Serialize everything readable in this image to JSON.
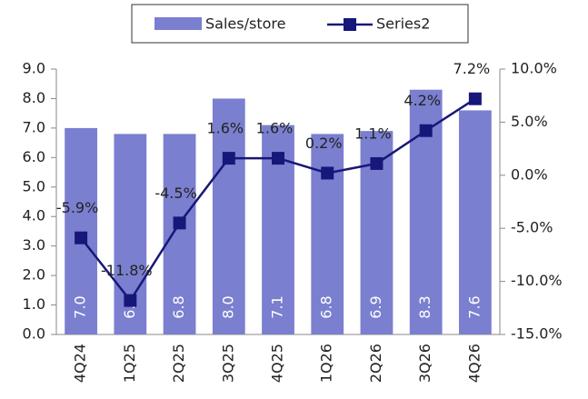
{
  "chart_data": {
    "type": "bar",
    "categories": [
      "4Q24",
      "1Q25",
      "2Q25",
      "3Q25",
      "4Q25",
      "1Q26",
      "2Q26",
      "3Q26",
      "4Q26"
    ],
    "series": [
      {
        "name": "Sales/store",
        "type": "bar",
        "color": "#7b7fcf",
        "values": [
          7.0,
          6.8,
          6.8,
          8.0,
          7.1,
          6.8,
          6.9,
          8.3,
          7.6
        ],
        "value_labels": [
          "7.0",
          "6.8",
          "6.8",
          "8.0",
          "7.1",
          "6.8",
          "6.9",
          "8.3",
          "7.6"
        ]
      },
      {
        "name": "Series2",
        "type": "line",
        "axis": "y2",
        "color": "#17177a",
        "values": [
          -5.9,
          -11.8,
          -4.5,
          1.6,
          1.6,
          0.2,
          1.1,
          4.2,
          7.2
        ],
        "value_labels": [
          "-5.9%",
          "-11.8%",
          "-4.5%",
          "1.6%",
          "1.6%",
          "0.2%",
          "1.1%",
          "4.2%",
          "7.2%"
        ]
      }
    ],
    "ylim": [
      0,
      9
    ],
    "yticks": [
      {
        "value": 0,
        "label": "0.0"
      },
      {
        "value": 1,
        "label": "1.0"
      },
      {
        "value": 2,
        "label": "2.0"
      },
      {
        "value": 3,
        "label": "3.0"
      },
      {
        "value": 4,
        "label": "4.0"
      },
      {
        "value": 5,
        "label": "5.0"
      },
      {
        "value": 6,
        "label": "6.0"
      },
      {
        "value": 7,
        "label": "7.0"
      },
      {
        "value": 8,
        "label": "8.0"
      },
      {
        "value": 9,
        "label": "9.0"
      }
    ],
    "y2lim": [
      -15,
      10
    ],
    "y2ticks": [
      {
        "value": -15,
        "label": "-15.0%"
      },
      {
        "value": -10,
        "label": "-10.0%"
      },
      {
        "value": -5,
        "label": "-5.0%"
      },
      {
        "value": 0,
        "label": "0.0%"
      },
      {
        "value": 5,
        "label": "5.0%"
      },
      {
        "value": 10,
        "label": "10.0%"
      }
    ],
    "legend": "top",
    "grid": false
  }
}
